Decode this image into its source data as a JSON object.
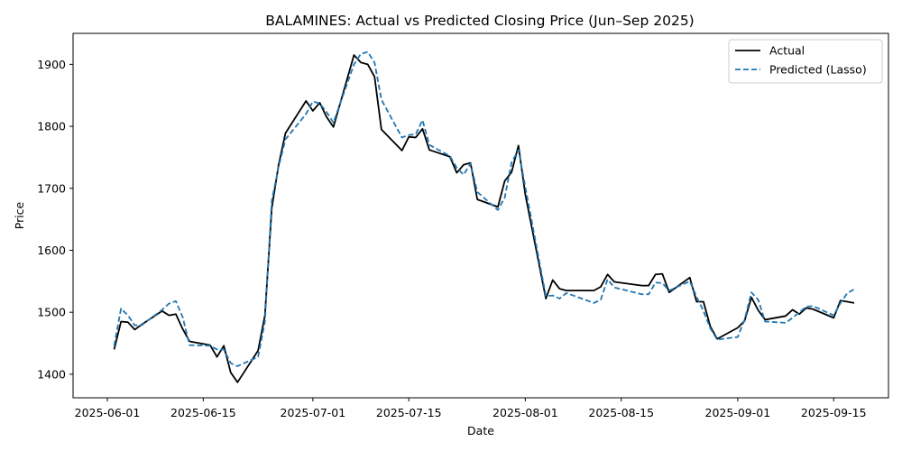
{
  "chart_data": {
    "type": "line",
    "title": "BALAMINES: Actual vs Predicted Closing Price (Jun–Sep 2025)",
    "xlabel": "Date",
    "ylabel": "Price",
    "xlim": [
      "2025-05-27",
      "2025-09-23"
    ],
    "ylim": [
      1362,
      1950
    ],
    "x_ticks": [
      "2025-06-01",
      "2025-06-15",
      "2025-07-01",
      "2025-07-15",
      "2025-08-01",
      "2025-08-15",
      "2025-09-01",
      "2025-09-15"
    ],
    "y_ticks": [
      1400,
      1500,
      1600,
      1700,
      1800,
      1900
    ],
    "grid": false,
    "legend_position": "top-right",
    "series": [
      {
        "name": "Actual",
        "color": "#000000",
        "style": "solid",
        "points": [
          [
            "2025-06-02",
            1440
          ],
          [
            "2025-06-03",
            1485
          ],
          [
            "2025-06-04",
            1484
          ],
          [
            "2025-06-05",
            1472
          ],
          [
            "2025-06-06",
            1480
          ],
          [
            "2025-06-09",
            1502
          ],
          [
            "2025-06-10",
            1495
          ],
          [
            "2025-06-11",
            1497
          ],
          [
            "2025-06-12",
            1473
          ],
          [
            "2025-06-13",
            1453
          ],
          [
            "2025-06-16",
            1447
          ],
          [
            "2025-06-17",
            1428
          ],
          [
            "2025-06-18",
            1446
          ],
          [
            "2025-06-19",
            1403
          ],
          [
            "2025-06-20",
            1387
          ],
          [
            "2025-06-23",
            1438
          ],
          [
            "2025-06-24",
            1495
          ],
          [
            "2025-06-25",
            1668
          ],
          [
            "2025-06-26",
            1738
          ],
          [
            "2025-06-27",
            1789
          ],
          [
            "2025-06-30",
            1841
          ],
          [
            "2025-07-01",
            1825
          ],
          [
            "2025-07-02",
            1838
          ],
          [
            "2025-07-03",
            1815
          ],
          [
            "2025-07-04",
            1799
          ],
          [
            "2025-07-07",
            1915
          ],
          [
            "2025-07-08",
            1903
          ],
          [
            "2025-07-09",
            1900
          ],
          [
            "2025-07-10",
            1880
          ],
          [
            "2025-07-11",
            1795
          ],
          [
            "2025-07-14",
            1761
          ],
          [
            "2025-07-15",
            1783
          ],
          [
            "2025-07-16",
            1782
          ],
          [
            "2025-07-17",
            1796
          ],
          [
            "2025-07-18",
            1762
          ],
          [
            "2025-07-21",
            1751
          ],
          [
            "2025-07-22",
            1725
          ],
          [
            "2025-07-23",
            1738
          ],
          [
            "2025-07-24",
            1741
          ],
          [
            "2025-07-25",
            1682
          ],
          [
            "2025-07-28",
            1670
          ],
          [
            "2025-07-29",
            1712
          ],
          [
            "2025-07-30",
            1726
          ],
          [
            "2025-07-31",
            1769
          ],
          [
            "2025-08-01",
            1690
          ],
          [
            "2025-08-04",
            1522
          ],
          [
            "2025-08-05",
            1552
          ],
          [
            "2025-08-06",
            1538
          ],
          [
            "2025-08-07",
            1535
          ],
          [
            "2025-08-11",
            1535
          ],
          [
            "2025-08-12",
            1541
          ],
          [
            "2025-08-13",
            1561
          ],
          [
            "2025-08-14",
            1549
          ],
          [
            "2025-08-18",
            1543
          ],
          [
            "2025-08-19",
            1543
          ],
          [
            "2025-08-20",
            1561
          ],
          [
            "2025-08-21",
            1562
          ],
          [
            "2025-08-22",
            1532
          ],
          [
            "2025-08-25",
            1556
          ],
          [
            "2025-08-26",
            1517
          ],
          [
            "2025-08-27",
            1517
          ],
          [
            "2025-08-28",
            1477
          ],
          [
            "2025-08-29",
            1457
          ],
          [
            "2025-09-01",
            1475
          ],
          [
            "2025-09-02",
            1486
          ],
          [
            "2025-09-03",
            1524
          ],
          [
            "2025-09-04",
            1503
          ],
          [
            "2025-09-05",
            1488
          ],
          [
            "2025-09-08",
            1494
          ],
          [
            "2025-09-09",
            1504
          ],
          [
            "2025-09-10",
            1497
          ],
          [
            "2025-09-11",
            1507
          ],
          [
            "2025-09-12",
            1505
          ],
          [
            "2025-09-15",
            1491
          ],
          [
            "2025-09-16",
            1519
          ],
          [
            "2025-09-18",
            1515
          ]
        ]
      },
      {
        "name": "Predicted (Lasso)",
        "color": "#1f77b4",
        "style": "dashed",
        "points": [
          [
            "2025-06-02",
            1446
          ],
          [
            "2025-06-03",
            1506
          ],
          [
            "2025-06-04",
            1495
          ],
          [
            "2025-06-05",
            1479
          ],
          [
            "2025-06-06",
            1479
          ],
          [
            "2025-06-09",
            1504
          ],
          [
            "2025-06-10",
            1514
          ],
          [
            "2025-06-11",
            1518
          ],
          [
            "2025-06-12",
            1492
          ],
          [
            "2025-06-13",
            1447
          ],
          [
            "2025-06-16",
            1446
          ],
          [
            "2025-06-17",
            1440
          ],
          [
            "2025-06-18",
            1440
          ],
          [
            "2025-06-19",
            1418
          ],
          [
            "2025-06-20",
            1413
          ],
          [
            "2025-06-23",
            1428
          ],
          [
            "2025-06-24",
            1485
          ],
          [
            "2025-06-25",
            1680
          ],
          [
            "2025-06-26",
            1735
          ],
          [
            "2025-06-27",
            1779
          ],
          [
            "2025-06-30",
            1820
          ],
          [
            "2025-07-01",
            1840
          ],
          [
            "2025-07-02",
            1837
          ],
          [
            "2025-07-03",
            1823
          ],
          [
            "2025-07-04",
            1806
          ],
          [
            "2025-07-07",
            1900
          ],
          [
            "2025-07-08",
            1917
          ],
          [
            "2025-07-09",
            1920
          ],
          [
            "2025-07-10",
            1903
          ],
          [
            "2025-07-11",
            1843
          ],
          [
            "2025-07-14",
            1782
          ],
          [
            "2025-07-15",
            1786
          ],
          [
            "2025-07-16",
            1787
          ],
          [
            "2025-07-17",
            1810
          ],
          [
            "2025-07-18",
            1770
          ],
          [
            "2025-07-21",
            1752
          ],
          [
            "2025-07-22",
            1733
          ],
          [
            "2025-07-23",
            1722
          ],
          [
            "2025-07-24",
            1740
          ],
          [
            "2025-07-25",
            1694
          ],
          [
            "2025-07-28",
            1665
          ],
          [
            "2025-07-29",
            1685
          ],
          [
            "2025-07-30",
            1742
          ],
          [
            "2025-07-31",
            1762
          ],
          [
            "2025-08-01",
            1702
          ],
          [
            "2025-08-04",
            1526
          ],
          [
            "2025-08-05",
            1527
          ],
          [
            "2025-08-06",
            1522
          ],
          [
            "2025-08-07",
            1531
          ],
          [
            "2025-08-11",
            1515
          ],
          [
            "2025-08-12",
            1520
          ],
          [
            "2025-08-13",
            1553
          ],
          [
            "2025-08-14",
            1540
          ],
          [
            "2025-08-18",
            1529
          ],
          [
            "2025-08-19",
            1529
          ],
          [
            "2025-08-20",
            1548
          ],
          [
            "2025-08-21",
            1547
          ],
          [
            "2025-08-22",
            1535
          ],
          [
            "2025-08-25",
            1550
          ],
          [
            "2025-08-26",
            1525
          ],
          [
            "2025-08-27",
            1502
          ],
          [
            "2025-08-28",
            1474
          ],
          [
            "2025-08-29",
            1456
          ],
          [
            "2025-09-01",
            1460
          ],
          [
            "2025-09-02",
            1488
          ],
          [
            "2025-09-03",
            1532
          ],
          [
            "2025-09-04",
            1520
          ],
          [
            "2025-09-05",
            1485
          ],
          [
            "2025-09-08",
            1483
          ],
          [
            "2025-09-09",
            1491
          ],
          [
            "2025-09-10",
            1500
          ],
          [
            "2025-09-11",
            1509
          ],
          [
            "2025-09-12",
            1510
          ],
          [
            "2025-09-15",
            1495
          ],
          [
            "2025-09-16",
            1515
          ],
          [
            "2025-09-17",
            1531
          ],
          [
            "2025-09-18",
            1537
          ]
        ]
      }
    ]
  }
}
